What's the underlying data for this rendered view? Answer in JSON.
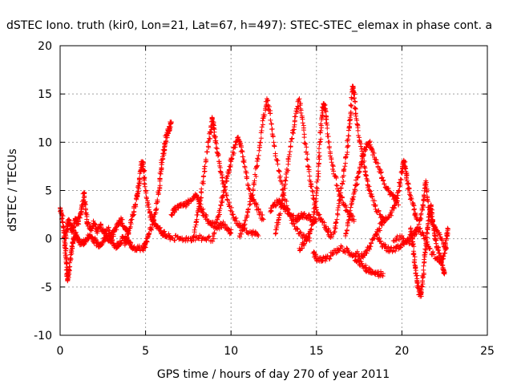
{
  "chart_data": {
    "type": "scatter",
    "title": "dSTEC Iono. truth (kir0, Lon=21, Lat=67, h=497): STEC-STEC_elemax in phase cont. a",
    "xlabel": "GPS time / hours of day 270 of year 2011",
    "ylabel": "dSTEC  / TECUs",
    "xlim": [
      0,
      25
    ],
    "ylim": [
      -10,
      20
    ],
    "x_ticks": [
      0,
      5,
      10,
      15,
      20,
      25
    ],
    "y_ticks": [
      -10,
      -5,
      0,
      5,
      10,
      15,
      20
    ],
    "x_tick_labels": [
      "0",
      "5",
      "10",
      "15",
      "20",
      "25"
    ],
    "y_tick_labels": [
      "-10",
      "-5",
      "0",
      "5",
      "10",
      "15",
      "20"
    ],
    "grid": true,
    "marker": "+",
    "color": "#ff0000",
    "series": [
      {
        "values": [
          [
            0.0,
            3.2
          ],
          [
            0.1,
            2.5
          ],
          [
            0.2,
            1.2
          ],
          [
            0.25,
            0.3
          ],
          [
            0.3,
            -1.0
          ],
          [
            0.35,
            -2.0
          ],
          [
            0.4,
            -3.2
          ],
          [
            0.45,
            -4.2
          ],
          [
            0.5,
            -3.5
          ],
          [
            0.6,
            -2.0
          ],
          [
            0.7,
            -0.8
          ],
          [
            0.8,
            0.0
          ],
          [
            0.9,
            0.5
          ],
          [
            1.0,
            0.2
          ],
          [
            1.1,
            -0.3
          ],
          [
            1.3,
            -0.5
          ],
          [
            1.5,
            -0.2
          ],
          [
            1.7,
            0.3
          ],
          [
            1.9,
            0.1
          ],
          [
            2.1,
            -0.4
          ],
          [
            2.3,
            -0.6
          ],
          [
            2.5,
            -0.3
          ],
          [
            2.7,
            0.2
          ],
          [
            2.9,
            0.0
          ],
          [
            3.1,
            -0.5
          ],
          [
            3.3,
            -0.8
          ],
          [
            3.5,
            -0.4
          ],
          [
            3.7,
            0.1
          ],
          [
            3.9,
            -0.2
          ],
          [
            4.1,
            -0.6
          ],
          [
            4.3,
            -0.9
          ],
          [
            4.6,
            -1.0
          ],
          [
            5.0,
            -0.9
          ]
        ]
      },
      {
        "values": [
          [
            0.3,
            0.0
          ],
          [
            0.4,
            1.0
          ],
          [
            0.5,
            2.0
          ],
          [
            0.6,
            1.5
          ],
          [
            0.7,
            0.8
          ],
          [
            0.8,
            1.2
          ],
          [
            0.9,
            2.0
          ],
          [
            1.0,
            1.5
          ],
          [
            1.2,
            2.5
          ],
          [
            1.3,
            3.5
          ],
          [
            1.4,
            4.8
          ],
          [
            1.5,
            3.0
          ],
          [
            1.6,
            1.5
          ],
          [
            1.8,
            1.0
          ],
          [
            2.0,
            1.6
          ],
          [
            2.2,
            0.8
          ],
          [
            2.4,
            1.3
          ],
          [
            2.6,
            0.5
          ],
          [
            2.8,
            1.0
          ],
          [
            3.0,
            0.3
          ],
          [
            3.2,
            0.8
          ],
          [
            3.4,
            1.5
          ],
          [
            3.6,
            2.0
          ],
          [
            3.8,
            1.0
          ],
          [
            4.0,
            0.5
          ]
        ]
      },
      {
        "values": [
          [
            3.8,
            -0.5
          ],
          [
            4.0,
            0.5
          ],
          [
            4.2,
            2.0
          ],
          [
            4.4,
            3.5
          ],
          [
            4.5,
            4.5
          ],
          [
            4.6,
            5.5
          ],
          [
            4.7,
            7.0
          ],
          [
            4.8,
            8.0
          ],
          [
            4.9,
            7.0
          ],
          [
            5.0,
            5.0
          ],
          [
            5.2,
            3.0
          ],
          [
            5.4,
            2.0
          ],
          [
            5.6,
            1.5
          ],
          [
            5.8,
            1.0
          ],
          [
            6.0,
            0.6
          ],
          [
            6.2,
            0.3
          ],
          [
            6.5,
            0.1
          ],
          [
            7.0,
            0.0
          ],
          [
            7.5,
            0.0
          ],
          [
            8.0,
            0.1
          ],
          [
            8.5,
            0.0
          ],
          [
            9.0,
            0.0
          ]
        ]
      },
      {
        "values": [
          [
            4.9,
            -1.0
          ],
          [
            5.0,
            -0.5
          ],
          [
            5.2,
            0.5
          ],
          [
            5.4,
            1.5
          ],
          [
            5.6,
            3.0
          ],
          [
            5.8,
            5.0
          ],
          [
            5.9,
            7.0
          ],
          [
            6.0,
            8.5
          ],
          [
            6.1,
            9.5
          ],
          [
            6.2,
            10.5
          ],
          [
            6.3,
            11.0
          ],
          [
            6.4,
            11.5
          ],
          [
            6.5,
            12.0
          ]
        ]
      },
      {
        "values": [
          [
            6.5,
            2.5
          ],
          [
            6.7,
            3.0
          ],
          [
            7.0,
            3.5
          ],
          [
            7.3,
            3.5
          ],
          [
            7.6,
            4.0
          ],
          [
            7.9,
            4.5
          ],
          [
            8.1,
            4.0
          ],
          [
            8.3,
            3.0
          ],
          [
            8.6,
            2.0
          ],
          [
            8.9,
            1.5
          ],
          [
            9.2,
            1.2
          ],
          [
            9.5,
            1.5
          ],
          [
            9.8,
            1.0
          ],
          [
            10.0,
            0.6
          ]
        ]
      },
      {
        "values": [
          [
            7.8,
            0.2
          ],
          [
            8.0,
            2.0
          ],
          [
            8.2,
            4.0
          ],
          [
            8.4,
            6.5
          ],
          [
            8.6,
            9.0
          ],
          [
            8.8,
            11.0
          ],
          [
            8.9,
            12.5
          ],
          [
            9.0,
            11.5
          ],
          [
            9.1,
            10.0
          ],
          [
            9.3,
            8.0
          ],
          [
            9.5,
            6.0
          ],
          [
            9.8,
            4.0
          ],
          [
            10.1,
            2.5
          ],
          [
            10.4,
            1.5
          ],
          [
            10.8,
            1.0
          ],
          [
            11.2,
            0.6
          ],
          [
            11.6,
            0.3
          ]
        ]
      },
      {
        "values": [
          [
            9.0,
            0.5
          ],
          [
            9.2,
            2.0
          ],
          [
            9.4,
            3.5
          ],
          [
            9.6,
            5.0
          ],
          [
            9.8,
            6.5
          ],
          [
            10.0,
            8.0
          ],
          [
            10.2,
            9.5
          ],
          [
            10.4,
            10.5
          ],
          [
            10.6,
            9.5
          ],
          [
            10.8,
            7.5
          ],
          [
            11.0,
            5.5
          ],
          [
            11.3,
            4.0
          ],
          [
            11.6,
            3.0
          ],
          [
            11.9,
            2.0
          ]
        ]
      },
      {
        "values": [
          [
            10.5,
            0.3
          ],
          [
            10.8,
            1.5
          ],
          [
            11.0,
            3.0
          ],
          [
            11.3,
            5.0
          ],
          [
            11.5,
            7.5
          ],
          [
            11.7,
            10.0
          ],
          [
            11.9,
            12.5
          ],
          [
            12.1,
            14.5
          ],
          [
            12.3,
            13.0
          ],
          [
            12.5,
            10.0
          ],
          [
            12.8,
            7.0
          ],
          [
            13.1,
            4.5
          ],
          [
            13.4,
            2.5
          ],
          [
            13.8,
            1.0
          ],
          [
            14.2,
            0.3
          ],
          [
            14.6,
            -0.2
          ]
        ]
      },
      {
        "values": [
          [
            12.3,
            2.8
          ],
          [
            12.5,
            3.5
          ],
          [
            12.8,
            4.0
          ],
          [
            13.0,
            3.5
          ],
          [
            13.2,
            3.0
          ],
          [
            13.5,
            2.5
          ],
          [
            13.8,
            2.0
          ],
          [
            14.0,
            2.2
          ],
          [
            14.2,
            2.5
          ],
          [
            14.5,
            2.3
          ],
          [
            14.8,
            2.0
          ],
          [
            15.0,
            1.8
          ]
        ]
      },
      {
        "values": [
          [
            12.6,
            0.5
          ],
          [
            12.8,
            2.0
          ],
          [
            13.0,
            4.0
          ],
          [
            13.2,
            6.0
          ],
          [
            13.4,
            8.5
          ],
          [
            13.6,
            11.0
          ],
          [
            13.8,
            13.0
          ],
          [
            14.0,
            14.5
          ],
          [
            14.2,
            12.0
          ],
          [
            14.4,
            9.0
          ],
          [
            14.6,
            6.5
          ],
          [
            14.8,
            4.5
          ],
          [
            15.0,
            3.0
          ],
          [
            15.3,
            2.0
          ],
          [
            15.6,
            1.0
          ],
          [
            15.9,
            0.2
          ]
        ]
      },
      {
        "values": [
          [
            14.0,
            -1.0
          ],
          [
            14.3,
            -0.5
          ],
          [
            14.6,
            0.5
          ],
          [
            14.8,
            2.0
          ],
          [
            15.0,
            4.5
          ],
          [
            15.1,
            7.0
          ],
          [
            15.2,
            10.0
          ],
          [
            15.3,
            12.5
          ],
          [
            15.4,
            14.0
          ],
          [
            15.5,
            13.5
          ],
          [
            15.6,
            12.0
          ],
          [
            15.8,
            9.0
          ],
          [
            16.0,
            7.0
          ],
          [
            16.3,
            5.0
          ],
          [
            16.6,
            3.5
          ],
          [
            16.9,
            2.5
          ],
          [
            17.2,
            2.0
          ]
        ]
      },
      {
        "values": [
          [
            14.8,
            -1.5
          ],
          [
            15.0,
            -2.0
          ],
          [
            15.3,
            -2.3
          ],
          [
            15.6,
            -2.0
          ],
          [
            16.0,
            -1.5
          ],
          [
            16.4,
            -1.0
          ],
          [
            16.8,
            -1.3
          ],
          [
            17.1,
            -1.8
          ],
          [
            17.4,
            -2.3
          ],
          [
            17.7,
            -2.8
          ],
          [
            18.0,
            -3.2
          ],
          [
            18.3,
            -3.5
          ],
          [
            18.6,
            -3.7
          ],
          [
            18.9,
            -3.6
          ]
        ]
      },
      {
        "values": [
          [
            16.0,
            0.5
          ],
          [
            16.2,
            2.0
          ],
          [
            16.4,
            4.5
          ],
          [
            16.6,
            7.0
          ],
          [
            16.8,
            9.5
          ],
          [
            16.9,
            11.5
          ],
          [
            17.0,
            13.0
          ],
          [
            17.1,
            15.8
          ],
          [
            17.2,
            15.0
          ],
          [
            17.3,
            13.0
          ],
          [
            17.5,
            10.5
          ],
          [
            17.7,
            8.5
          ],
          [
            17.9,
            6.5
          ],
          [
            18.1,
            5.0
          ],
          [
            18.4,
            3.5
          ],
          [
            18.7,
            2.5
          ],
          [
            19.0,
            1.8
          ]
        ]
      },
      {
        "values": [
          [
            16.7,
            0.3
          ],
          [
            16.9,
            2.0
          ],
          [
            17.1,
            4.0
          ],
          [
            17.3,
            5.5
          ],
          [
            17.5,
            7.0
          ],
          [
            17.7,
            8.5
          ],
          [
            17.9,
            9.5
          ],
          [
            18.1,
            10.0
          ],
          [
            18.3,
            9.0
          ],
          [
            18.6,
            7.5
          ],
          [
            18.9,
            6.0
          ],
          [
            19.2,
            5.0
          ],
          [
            19.5,
            4.5
          ],
          [
            19.8,
            3.5
          ]
        ]
      },
      {
        "values": [
          [
            17.3,
            -1.5
          ],
          [
            17.6,
            -1.8
          ],
          [
            17.9,
            -1.5
          ],
          [
            18.2,
            -0.5
          ],
          [
            18.5,
            0.5
          ],
          [
            18.8,
            1.5
          ],
          [
            19.0,
            2.0
          ],
          [
            19.3,
            2.5
          ],
          [
            19.6,
            3.5
          ],
          [
            19.8,
            5.0
          ],
          [
            20.0,
            7.0
          ],
          [
            20.1,
            8.0
          ],
          [
            20.2,
            7.5
          ],
          [
            20.3,
            6.0
          ],
          [
            20.5,
            4.5
          ],
          [
            20.7,
            3.0
          ],
          [
            20.9,
            2.0
          ]
        ]
      },
      {
        "values": [
          [
            18.5,
            0.5
          ],
          [
            18.8,
            -0.5
          ],
          [
            19.1,
            -1.0
          ],
          [
            19.5,
            -1.2
          ],
          [
            19.9,
            -0.8
          ],
          [
            20.3,
            -0.2
          ],
          [
            20.7,
            0.5
          ],
          [
            21.0,
            1.0
          ],
          [
            21.3,
            0.0
          ],
          [
            21.6,
            -1.0
          ],
          [
            22.0,
            -2.0
          ],
          [
            22.3,
            -2.5
          ],
          [
            22.5,
            -1.5
          ],
          [
            22.6,
            0.0
          ],
          [
            22.7,
            1.0
          ]
        ]
      },
      {
        "values": [
          [
            20.5,
            1.0
          ],
          [
            20.6,
            0.0
          ],
          [
            20.7,
            -1.5
          ],
          [
            20.8,
            -3.0
          ],
          [
            20.9,
            -4.5
          ],
          [
            21.0,
            -5.5
          ],
          [
            21.1,
            -5.8
          ],
          [
            21.2,
            -4.5
          ],
          [
            21.3,
            -2.5
          ],
          [
            21.4,
            -0.5
          ],
          [
            21.5,
            1.0
          ],
          [
            21.6,
            2.5
          ],
          [
            21.7,
            3.5
          ],
          [
            21.8,
            2.0
          ],
          [
            21.9,
            0.5
          ],
          [
            22.0,
            -0.5
          ],
          [
            22.2,
            -1.5
          ],
          [
            22.4,
            -3.0
          ],
          [
            22.5,
            -3.5
          ]
        ]
      },
      {
        "values": [
          [
            19.5,
            -0.2
          ],
          [
            20.0,
            0.3
          ],
          [
            20.5,
            -0.5
          ],
          [
            21.0,
            1.5
          ],
          [
            21.2,
            3.0
          ],
          [
            21.3,
            4.5
          ],
          [
            21.4,
            6.0
          ],
          [
            21.5,
            4.0
          ],
          [
            21.7,
            2.0
          ],
          [
            22.0,
            1.0
          ],
          [
            22.3,
            0.0
          ],
          [
            22.6,
            -1.0
          ]
        ]
      }
    ]
  }
}
